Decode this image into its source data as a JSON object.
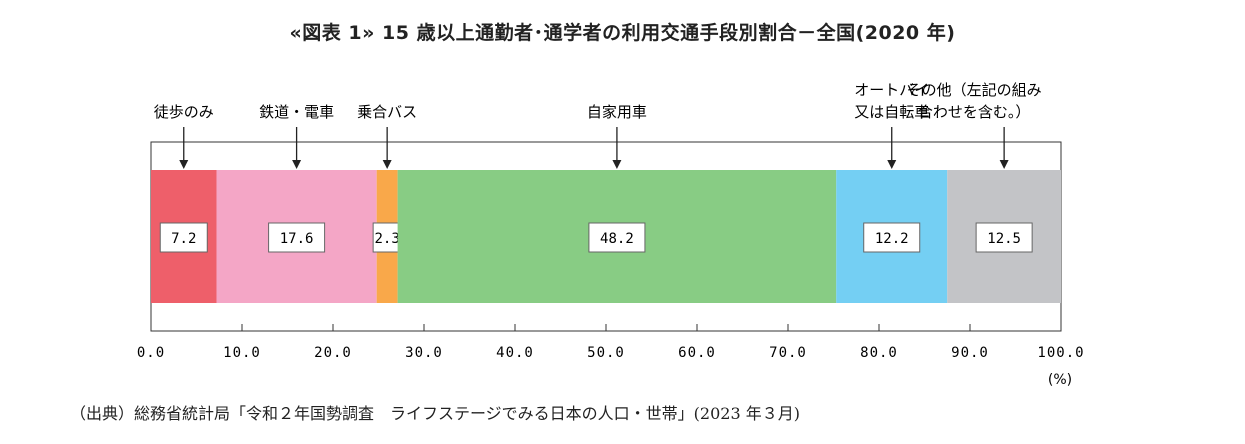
{
  "title": "«図表 1» 15 歳以上通勤者･通学者の利用交通手段別割合－全国(2020 年)",
  "source": "（出典）総務省統計局「令和２年国勢調査　ライフステージでみる日本の人口・世帯」(2023 年３月)",
  "colors": {
    "walk": "#ee5f6a",
    "rail": "#f4a6c6",
    "bus": "#f9a84a",
    "car": "#88cc84",
    "bike": "#74cff3",
    "other": "#c3c4c7"
  },
  "chart_data": {
    "type": "bar",
    "orientation": "horizontal-stacked",
    "title": "«図表 1» 15 歳以上通勤者･通学者の利用交通手段別割合－全国(2020 年)",
    "unit_label": "(%)",
    "xlim": [
      0,
      100
    ],
    "x_ticks": [
      "0.0",
      "10.0",
      "20.0",
      "30.0",
      "40.0",
      "50.0",
      "60.0",
      "70.0",
      "80.0",
      "90.0",
      "100.0"
    ],
    "grid": false,
    "segments": [
      {
        "label_lines": [
          "徒歩のみ"
        ],
        "value": 7.2,
        "display": "7.2",
        "color": "#ee5f6a"
      },
      {
        "label_lines": [
          "鉄道・電車"
        ],
        "value": 17.6,
        "display": "17.6",
        "color": "#f4a6c6"
      },
      {
        "label_lines": [
          "乗合バス"
        ],
        "value": 2.3,
        "display": "2.3",
        "color": "#f9a84a"
      },
      {
        "label_lines": [
          "自家用車"
        ],
        "value": 48.2,
        "display": "48.2",
        "color": "#88cc84"
      },
      {
        "label_lines": [
          "オートバイ",
          "又は自転車"
        ],
        "value": 12.2,
        "display": "12.2",
        "color": "#74cff3"
      },
      {
        "label_lines": [
          "その他（左記の組み",
          "合わせを含む。）"
        ],
        "value": 12.5,
        "display": "12.5",
        "color": "#c3c4c7"
      }
    ]
  }
}
